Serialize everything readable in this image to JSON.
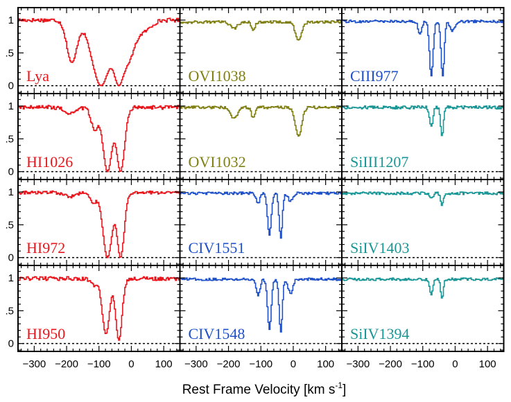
{
  "chart_data": {
    "type": "line",
    "layout": "4x3 grid of stacked velocity plots",
    "xlabel": "Rest Frame Velocity [km s",
    "xlabel_sup": "-1",
    "xlabel_suffix": "]",
    "xlim": [
      -350,
      150
    ],
    "ylim": [
      -0.12,
      1.19
    ],
    "xticks": [
      -300,
      -200,
      -100,
      0,
      100
    ],
    "xtick_labels": [
      "−300",
      "−200",
      "−100",
      "0",
      "100"
    ],
    "yticks": [
      0,
      0.5,
      1
    ],
    "ytick_labels": [
      "0",
      ".5",
      "1"
    ],
    "zero_line": "dotted",
    "colors": {
      "HI": "#e8161c",
      "OVI": "#7f7f14",
      "CIII_CIV": "#1e50c8",
      "Si": "#1a9696"
    },
    "panels": [
      {
        "label": "Lya",
        "color": "#e8161c",
        "row": 0,
        "col": 0,
        "profile": {
          "continuum": 1.0,
          "noise": 0.03,
          "components": [
            {
              "center": -185,
              "depth": 0.65,
              "width": 22
            },
            {
              "center": -95,
              "depth": 1.0,
              "width": 40
            },
            {
              "center": -40,
              "depth": 1.0,
              "width": 25
            },
            {
              "center": -10,
              "depth": 0.55,
              "width": 30
            },
            {
              "center": 40,
              "depth": 0.15,
              "width": 30
            }
          ]
        }
      },
      {
        "label": "OVI1038",
        "color": "#7f7f14",
        "row": 0,
        "col": 1,
        "profile": {
          "continuum": 0.97,
          "noise": 0.02,
          "components": [
            {
              "center": -185,
              "depth": 0.1,
              "width": 15
            },
            {
              "center": -125,
              "depth": 0.12,
              "width": 8
            },
            {
              "center": 15,
              "depth": 0.28,
              "width": 14
            }
          ]
        }
      },
      {
        "label": "CIII977",
        "color": "#1e50c8",
        "row": 0,
        "col": 2,
        "profile": {
          "continuum": 0.98,
          "noise": 0.02,
          "components": [
            {
              "center": -110,
              "depth": 0.2,
              "width": 8
            },
            {
              "center": -75,
              "depth": 0.85,
              "width": 8
            },
            {
              "center": -40,
              "depth": 0.85,
              "width": 7
            },
            {
              "center": -10,
              "depth": 0.15,
              "width": 10
            }
          ]
        }
      },
      {
        "label": "HI1026",
        "color": "#e8161c",
        "row": 1,
        "col": 0,
        "profile": {
          "continuum": 0.98,
          "noise": 0.03,
          "components": [
            {
              "center": -190,
              "depth": 0.1,
              "width": 25
            },
            {
              "center": -115,
              "depth": 0.35,
              "width": 15
            },
            {
              "center": -75,
              "depth": 1.0,
              "width": 20
            },
            {
              "center": -35,
              "depth": 1.0,
              "width": 18
            }
          ]
        }
      },
      {
        "label": "OVI1032",
        "color": "#7f7f14",
        "row": 1,
        "col": 1,
        "profile": {
          "continuum": 0.98,
          "noise": 0.02,
          "components": [
            {
              "center": -185,
              "depth": 0.18,
              "width": 15
            },
            {
              "center": -125,
              "depth": 0.17,
              "width": 8
            },
            {
              "center": 15,
              "depth": 0.45,
              "width": 14
            }
          ]
        }
      },
      {
        "label": "SiIII1207",
        "color": "#1a9696",
        "row": 1,
        "col": 2,
        "profile": {
          "continuum": 0.98,
          "noise": 0.025,
          "components": [
            {
              "center": -75,
              "depth": 0.3,
              "width": 7
            },
            {
              "center": -42,
              "depth": 0.45,
              "width": 6
            }
          ]
        }
      },
      {
        "label": "HI972",
        "color": "#e8161c",
        "row": 2,
        "col": 0,
        "profile": {
          "continuum": 0.99,
          "noise": 0.025,
          "components": [
            {
              "center": -190,
              "depth": 0.06,
              "width": 25
            },
            {
              "center": -120,
              "depth": 0.15,
              "width": 15
            },
            {
              "center": -75,
              "depth": 1.0,
              "width": 20
            },
            {
              "center": -35,
              "depth": 1.0,
              "width": 16
            }
          ]
        }
      },
      {
        "label": "CIV1551",
        "color": "#1e50c8",
        "row": 2,
        "col": 1,
        "profile": {
          "continuum": 0.98,
          "noise": 0.02,
          "components": [
            {
              "center": -110,
              "depth": 0.15,
              "width": 8
            },
            {
              "center": -75,
              "depth": 0.65,
              "width": 8
            },
            {
              "center": -40,
              "depth": 0.7,
              "width": 7
            },
            {
              "center": -10,
              "depth": 0.12,
              "width": 10
            }
          ]
        }
      },
      {
        "label": "SiIV1403",
        "color": "#1a9696",
        "row": 2,
        "col": 2,
        "profile": {
          "continuum": 0.98,
          "noise": 0.02,
          "components": [
            {
              "center": -75,
              "depth": 0.08,
              "width": 7
            },
            {
              "center": -42,
              "depth": 0.18,
              "width": 6
            }
          ]
        }
      },
      {
        "label": "HI950",
        "color": "#e8161c",
        "row": 3,
        "col": 0,
        "profile": {
          "continuum": 0.99,
          "noise": 0.03,
          "components": [
            {
              "center": -115,
              "depth": 0.1,
              "width": 15
            },
            {
              "center": -80,
              "depth": 0.85,
              "width": 16
            },
            {
              "center": -40,
              "depth": 0.95,
              "width": 14
            }
          ]
        }
      },
      {
        "label": "CIV1548",
        "color": "#1e50c8",
        "row": 3,
        "col": 1,
        "profile": {
          "continuum": 0.98,
          "noise": 0.02,
          "components": [
            {
              "center": -110,
              "depth": 0.25,
              "width": 8
            },
            {
              "center": -75,
              "depth": 0.78,
              "width": 8
            },
            {
              "center": -40,
              "depth": 0.82,
              "width": 7
            },
            {
              "center": -10,
              "depth": 0.22,
              "width": 10
            }
          ]
        }
      },
      {
        "label": "SiIV1394",
        "color": "#1a9696",
        "row": 3,
        "col": 2,
        "profile": {
          "continuum": 0.98,
          "noise": 0.02,
          "components": [
            {
              "center": -75,
              "depth": 0.25,
              "width": 7
            },
            {
              "center": -42,
              "depth": 0.3,
              "width": 6
            }
          ]
        }
      }
    ]
  }
}
